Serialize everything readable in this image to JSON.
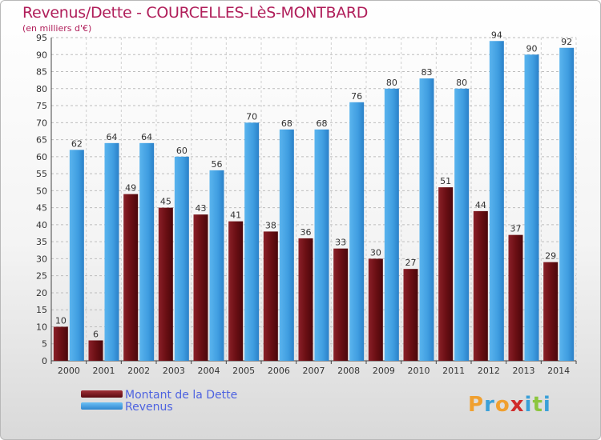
{
  "header": {
    "title": "Revenus/Dette - COURCELLES-LèS-MONTBARD",
    "subtitle": "(en milliers d'€)"
  },
  "legend": {
    "items": [
      {
        "label": "Montant de la Dette",
        "color": "#6b0f14"
      },
      {
        "label": "Revenus",
        "color": "#3f9de0"
      }
    ]
  },
  "logo": {
    "text": "Proxiti"
  },
  "chart_data": {
    "type": "bar",
    "categories": [
      "2000",
      "2001",
      "2002",
      "2003",
      "2004",
      "2005",
      "2006",
      "2007",
      "2008",
      "2009",
      "2010",
      "2011",
      "2012",
      "2013",
      "2014"
    ],
    "series": [
      {
        "name": "Montant de la Dette",
        "color": "#6b0f14",
        "values": [
          10,
          6,
          49,
          45,
          43,
          41,
          38,
          36,
          33,
          30,
          27,
          51,
          44,
          37,
          29
        ]
      },
      {
        "name": "Revenus",
        "color": "#3f9de0",
        "values": [
          62,
          64,
          64,
          60,
          56,
          70,
          68,
          68,
          76,
          80,
          83,
          80,
          94,
          90,
          92
        ]
      }
    ],
    "ylim": [
      0,
      95
    ],
    "ytick_step": 5,
    "grid": true,
    "data_labels": true,
    "legend_position": "bottom-left"
  }
}
